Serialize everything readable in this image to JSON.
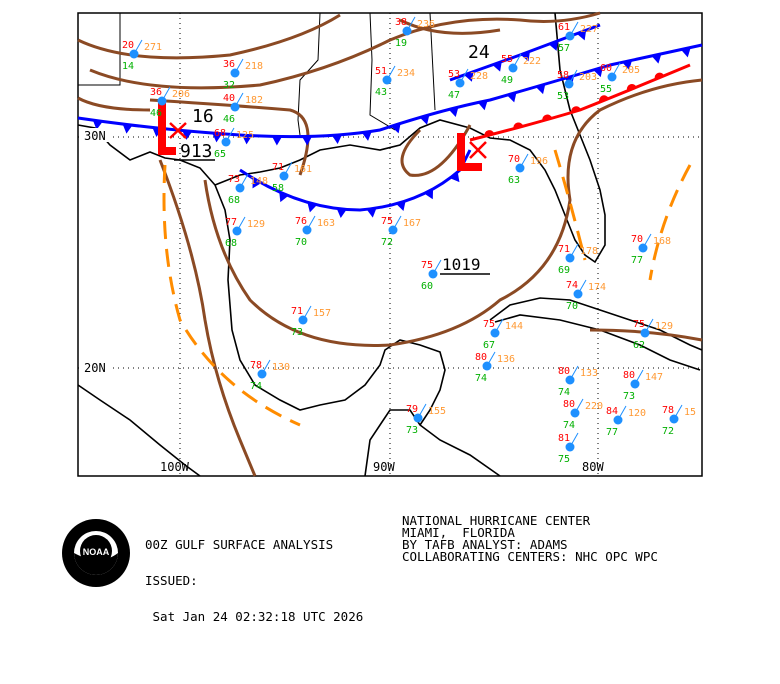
{
  "map": {
    "lat_labels": [
      "30N",
      "20N"
    ],
    "lon_labels": [
      "100W",
      "90W",
      "80W"
    ],
    "pressure_centers": [
      {
        "type": "L",
        "label": "16",
        "sub": "913",
        "color": "#ff0000"
      },
      {
        "type": "L",
        "label": "",
        "sub": "",
        "color": "#ff0000"
      },
      {
        "type": "H",
        "label": "24",
        "sub": "",
        "color": "#000000"
      },
      {
        "type": "H",
        "label": "1019",
        "sub": "",
        "color": "#000000"
      }
    ],
    "colors": {
      "isobar": "#8b4a24",
      "cold_front": "#0000ff",
      "warm_front": "#ff0000",
      "trough": "#ff8c00",
      "temp": "#ff0000",
      "dewpoint": "#00b000",
      "pressure": "#ff9933",
      "station": "#1e90ff",
      "coast": "#000000"
    },
    "stations": [
      {
        "t": "20",
        "td": "14",
        "p": "271"
      },
      {
        "t": "36",
        "td": "32",
        "p": "218"
      },
      {
        "t": "36",
        "td": "46",
        "p": "206"
      },
      {
        "t": "40",
        "td": "46",
        "p": "182"
      },
      {
        "t": "38",
        "td": "19",
        "p": "236"
      },
      {
        "t": "51",
        "td": "43",
        "p": "234"
      },
      {
        "t": "53",
        "td": "47",
        "p": "228"
      },
      {
        "t": "55",
        "td": "49",
        "p": "222"
      },
      {
        "t": "61",
        "td": "57",
        "p": "227"
      },
      {
        "t": "58",
        "td": "53",
        "p": "203"
      },
      {
        "t": "60",
        "td": "55",
        "p": "205"
      },
      {
        "t": "68",
        "td": "65",
        "p": "125"
      },
      {
        "t": "73",
        "td": "68",
        "p": "148"
      },
      {
        "t": "71",
        "td": "58",
        "p": "161"
      },
      {
        "t": "77",
        "td": "68",
        "p": "129"
      },
      {
        "t": "76",
        "td": "70",
        "p": "163"
      },
      {
        "t": "75",
        "td": "72",
        "p": "167"
      },
      {
        "t": "75",
        "td": "60",
        "p": ""
      },
      {
        "t": "70",
        "td": "63",
        "p": "196"
      },
      {
        "t": "71",
        "td": "69",
        "p": "178"
      },
      {
        "t": "74",
        "td": "70",
        "p": "174"
      },
      {
        "t": "70",
        "td": "77",
        "p": "168"
      },
      {
        "t": "71",
        "td": "73",
        "p": "157"
      },
      {
        "t": "75",
        "td": "67",
        "p": "144"
      },
      {
        "t": "78",
        "td": "74",
        "p": "130"
      },
      {
        "t": "80",
        "td": "74",
        "p": "136"
      },
      {
        "t": "80",
        "td": "74",
        "p": "133"
      },
      {
        "t": "79",
        "td": "73",
        "p": "155"
      },
      {
        "t": "80",
        "td": "74",
        "p": "220"
      },
      {
        "t": "84",
        "td": "77",
        "p": "120"
      },
      {
        "t": "81",
        "td": "75",
        "p": ""
      },
      {
        "t": "80",
        "td": "73",
        "p": "147"
      },
      {
        "t": "75",
        "td": "62",
        "p": "129"
      },
      {
        "t": "78",
        "td": "72",
        "p": "15"
      }
    ]
  },
  "caption": {
    "title": "00Z GULF SURFACE ANALYSIS",
    "issued_label": "ISSUED:",
    "issued_time": " Sat Jan 24 02:32:18 UTC 2026",
    "center": "NATIONAL HURRICANE CENTER",
    "location": "MIAMI,  FLORIDA",
    "analyst": "BY TAFB ANALYST: ADAMS",
    "collab": "COLLABORATING CENTERS: NHC OPC WPC"
  },
  "logo": {
    "text": "NOAA"
  }
}
